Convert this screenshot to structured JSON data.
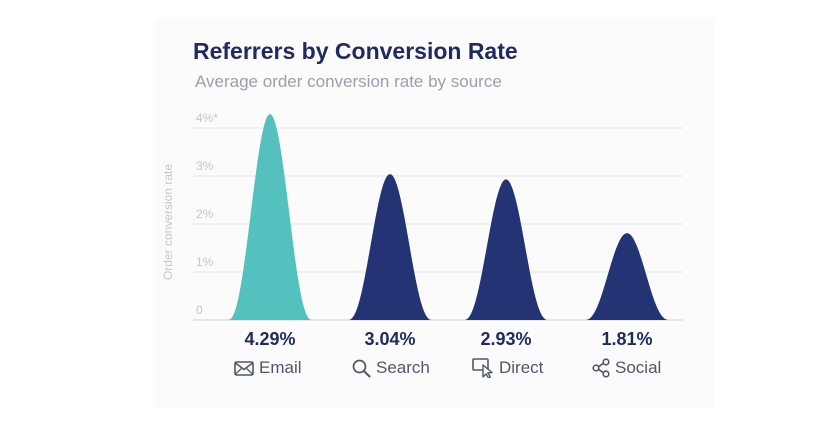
{
  "title": "Referrers by Conversion Rate",
  "subtitle": "Average order conversion rate by source",
  "colors": {
    "highlight": "#55c1bf",
    "bar": "#233374",
    "title": "#1f2a5e",
    "grid": "#e3e6ec",
    "axis_text": "#c2c6cd"
  },
  "chart_data": {
    "type": "area",
    "title": "Referrers by Conversion Rate",
    "subtitle": "Average order conversion rate by source",
    "xlabel": "",
    "ylabel": "Order conversion rate",
    "ylim": [
      0,
      4
    ],
    "yticks": [
      "0",
      "1%",
      "2%",
      "3%",
      "4%*"
    ],
    "grid": true,
    "categories": [
      "Email",
      "Search",
      "Direct",
      "Social"
    ],
    "values": [
      4.29,
      3.04,
      2.93,
      1.81
    ],
    "value_labels": [
      "4.29%",
      "3.04%",
      "2.93%",
      "1.81%"
    ],
    "highlighted": "Email"
  },
  "sources": [
    {
      "label": "Email",
      "icon": "envelope-icon"
    },
    {
      "label": "Search",
      "icon": "magnifier-icon"
    },
    {
      "label": "Direct",
      "icon": "pointer-click-icon"
    },
    {
      "label": "Social",
      "icon": "share-icon"
    }
  ]
}
